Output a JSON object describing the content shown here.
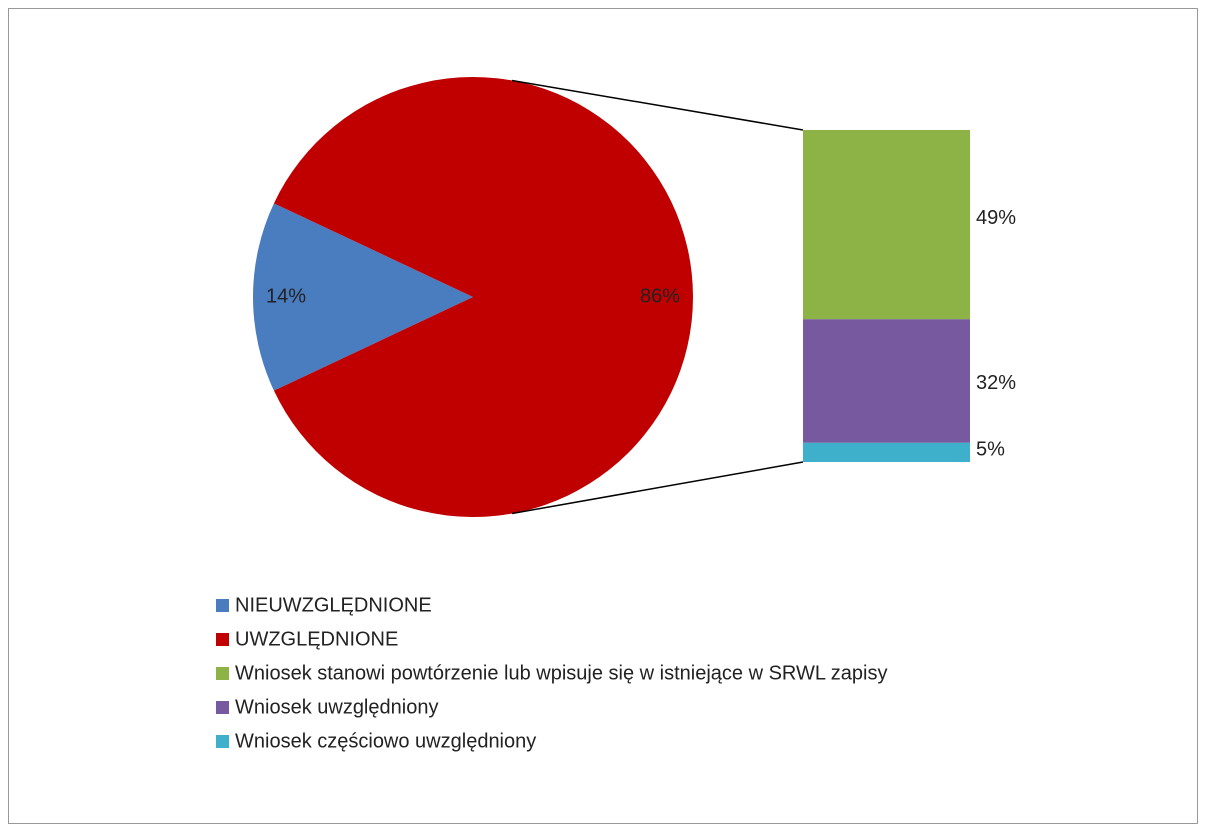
{
  "chart_data": {
    "type": "bar-of-pie",
    "pie": {
      "categories": [
        "NIEUWZGLĘDNIONE",
        "UWZGLĘDNIONE"
      ],
      "values": [
        14,
        86
      ],
      "value_labels": [
        "14%",
        "86%"
      ],
      "colors": [
        "#4a7cc0",
        "#c00000"
      ]
    },
    "bar": {
      "categories": [
        "Wniosek stanowi powtórzenie lub wpisuje się w istniejące w SRWL zapisy",
        "Wniosek uwzględniony",
        "Wniosek częściowo uwzględniony"
      ],
      "values": [
        49,
        32,
        5
      ],
      "value_labels": [
        "49%",
        "32%",
        "5%"
      ],
      "colors": [
        "#8db346",
        "#7759a0",
        "#3fb0cc"
      ]
    }
  }
}
